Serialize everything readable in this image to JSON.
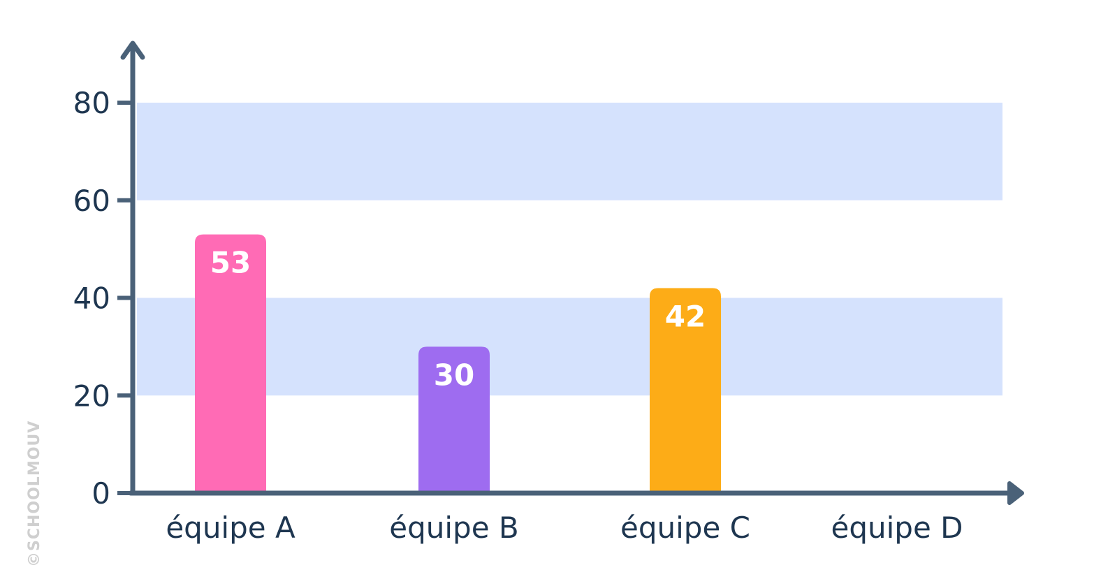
{
  "chart_data": {
    "type": "bar",
    "title": "",
    "xlabel": "",
    "ylabel": "",
    "categories": [
      "équipe A",
      "équipe B",
      "équipe C",
      "équipe D"
    ],
    "values": [
      53,
      30,
      42,
      null
    ],
    "value_labels": [
      "53",
      "30",
      "42",
      ""
    ],
    "colors": [
      "#ff6bb5",
      "#9e6cf0",
      "#fdac17",
      "#cccccc"
    ],
    "ylim": [
      0,
      80
    ],
    "yticks": [
      0,
      20,
      40,
      60,
      80
    ],
    "ytick_labels": [
      "0",
      "20",
      "40",
      "60",
      "80"
    ],
    "bands": [
      [
        20,
        40
      ],
      [
        60,
        80
      ]
    ],
    "band_color": "#d5e2fd",
    "axis_color": "#4a6178",
    "grid": false,
    "legend": "none"
  },
  "watermark": "©SCHOOLMOUV"
}
